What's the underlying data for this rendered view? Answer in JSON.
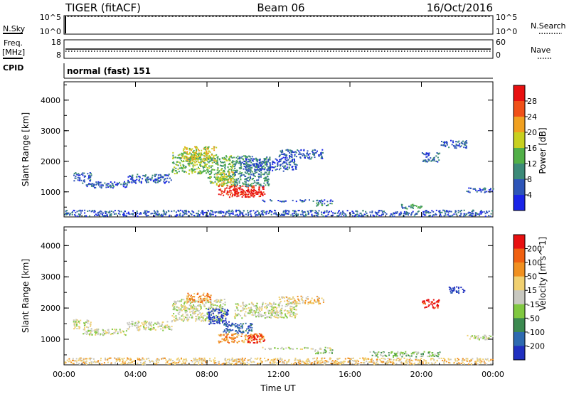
{
  "header": {
    "radar": "TIGER (fitACF)",
    "beam": "Beam 06",
    "date": "16/Oct/2016"
  },
  "strip_nsky": {
    "left_label": "N.Sky",
    "left_ticks": [
      "10^5",
      "10^0"
    ],
    "right_label": "N.Search",
    "right_ticks": [
      "10^5",
      "10^0"
    ]
  },
  "strip_freq": {
    "left_label_1": "Freq.",
    "left_label_2": "[MHz]",
    "left_ticks": [
      "18",
      "8"
    ],
    "right_label": "Nave",
    "right_ticks": [
      "60",
      "0"
    ]
  },
  "cpid": {
    "label": "CPID",
    "value": "normal (fast) 151"
  },
  "chart_data": [
    {
      "type": "heatmap",
      "name": "power",
      "ylabel": "Slant Range [km]",
      "xlabel": "",
      "xlim": [
        0,
        24
      ],
      "ylim": [
        180,
        4600
      ],
      "x_ticks": [
        "00:00",
        "04:00",
        "08:00",
        "12:00",
        "16:00",
        "20:00",
        "00:00"
      ],
      "y_ticks": [
        "1000",
        "2000",
        "3000",
        "4000"
      ],
      "colorbar": {
        "label": "Power [dB]",
        "ticks": [
          "4",
          "8",
          "12",
          "16",
          "20",
          "24",
          "28"
        ],
        "colors": [
          "#1a24e8",
          "#2e55b8",
          "#3c8a78",
          "#52b048",
          "#c8d020",
          "#f0a020",
          "#f05018",
          "#e81010"
        ]
      },
      "regions": [
        {
          "t0": 0.0,
          "t1": 24.0,
          "r0": 220,
          "r1": 420,
          "level": 1
        },
        {
          "t0": 0.5,
          "t1": 1.5,
          "r0": 1350,
          "r1": 1650,
          "level": 1
        },
        {
          "t0": 1.0,
          "t1": 3.5,
          "r0": 1150,
          "r1": 1350,
          "level": 1
        },
        {
          "t0": 3.5,
          "t1": 6.0,
          "r0": 1300,
          "r1": 1600,
          "level": 1
        },
        {
          "t0": 6.0,
          "t1": 8.0,
          "r0": 1600,
          "r1": 2300,
          "level": 3
        },
        {
          "t0": 6.5,
          "t1": 8.5,
          "r0": 2000,
          "r1": 2500,
          "level": 4
        },
        {
          "t0": 8.0,
          "t1": 9.5,
          "r0": 1300,
          "r1": 2200,
          "level": 3
        },
        {
          "t0": 8.5,
          "t1": 9.5,
          "r0": 1200,
          "r1": 1700,
          "level": 4
        },
        {
          "t0": 8.6,
          "t1": 11.2,
          "r0": 900,
          "r1": 1250,
          "level": 7
        },
        {
          "t0": 9.2,
          "t1": 11.0,
          "r0": 850,
          "r1": 1050,
          "level": 7
        },
        {
          "t0": 9.5,
          "t1": 11.5,
          "r0": 1200,
          "r1": 2200,
          "level": 2
        },
        {
          "t0": 10.0,
          "t1": 13.0,
          "r0": 1700,
          "r1": 2100,
          "level": 1
        },
        {
          "t0": 12.0,
          "t1": 14.5,
          "r0": 2100,
          "r1": 2400,
          "level": 1
        },
        {
          "t0": 11.0,
          "t1": 15.0,
          "r0": 700,
          "r1": 760,
          "level": 1
        },
        {
          "t0": 14.0,
          "t1": 15.0,
          "r0": 560,
          "r1": 680,
          "level": 2
        },
        {
          "t0": 18.8,
          "t1": 20.0,
          "r0": 460,
          "r1": 620,
          "level": 2
        },
        {
          "t0": 20.0,
          "t1": 21.0,
          "r0": 2000,
          "r1": 2300,
          "level": 1
        },
        {
          "t0": 21.0,
          "t1": 22.5,
          "r0": 2450,
          "r1": 2700,
          "level": 1
        },
        {
          "t0": 22.5,
          "t1": 24.0,
          "r0": 1000,
          "r1": 1150,
          "level": 1
        }
      ]
    },
    {
      "type": "heatmap",
      "name": "velocity",
      "ylabel": "Slant Range [km]",
      "xlabel": "Time UT",
      "xlim": [
        0,
        24
      ],
      "ylim": [
        180,
        4600
      ],
      "x_ticks": [
        "00:00",
        "04:00",
        "08:00",
        "12:00",
        "16:00",
        "20:00",
        "00:00"
      ],
      "y_ticks": [
        "1000",
        "2000",
        "3000",
        "4000"
      ],
      "colorbar": {
        "label": "Velocity [m s^-1]",
        "ticks": [
          "200",
          "100",
          "50",
          "15",
          "-15",
          "-50",
          "-100",
          "-200"
        ],
        "colors": [
          "#2030c0",
          "#2e6ab0",
          "#3c8a50",
          "#80c840",
          "#c8c8c0",
          "#f0d070",
          "#f09020",
          "#f06010",
          "#e81010"
        ]
      },
      "regions": [
        {
          "t0": 0.0,
          "t1": 24.0,
          "r0": 220,
          "r1": 420,
          "level": 5
        },
        {
          "t0": 0.5,
          "t1": 1.5,
          "r0": 1350,
          "r1": 1650,
          "level": 4
        },
        {
          "t0": 1.0,
          "t1": 3.5,
          "r0": 1150,
          "r1": 1350,
          "level": 4
        },
        {
          "t0": 3.5,
          "t1": 6.0,
          "r0": 1300,
          "r1": 1600,
          "level": 4
        },
        {
          "t0": 6.0,
          "t1": 9.0,
          "r0": 1600,
          "r1": 2300,
          "level": 4
        },
        {
          "t0": 6.8,
          "t1": 8.2,
          "r0": 2200,
          "r1": 2500,
          "level": 6
        },
        {
          "t0": 8.0,
          "t1": 9.2,
          "r0": 1500,
          "r1": 2000,
          "level": 0
        },
        {
          "t0": 8.8,
          "t1": 10.5,
          "r0": 1200,
          "r1": 1550,
          "level": 1
        },
        {
          "t0": 8.6,
          "t1": 11.2,
          "r0": 900,
          "r1": 1200,
          "level": 6
        },
        {
          "t0": 10.2,
          "t1": 11.2,
          "r0": 900,
          "r1": 1150,
          "level": 8
        },
        {
          "t0": 9.5,
          "t1": 13.0,
          "r0": 1700,
          "r1": 2200,
          "level": 4
        },
        {
          "t0": 12.0,
          "t1": 14.5,
          "r0": 2150,
          "r1": 2400,
          "level": 5
        },
        {
          "t0": 11.0,
          "t1": 15.0,
          "r0": 700,
          "r1": 760,
          "level": 4
        },
        {
          "t0": 14.0,
          "t1": 15.0,
          "r0": 560,
          "r1": 680,
          "level": 3
        },
        {
          "t0": 17.0,
          "t1": 21.0,
          "r0": 450,
          "r1": 620,
          "level": 3
        },
        {
          "t0": 20.0,
          "t1": 21.0,
          "r0": 2000,
          "r1": 2300,
          "level": 8
        },
        {
          "t0": 21.5,
          "t1": 22.5,
          "r0": 2500,
          "r1": 2700,
          "level": 0
        },
        {
          "t0": 22.5,
          "t1": 24.0,
          "r0": 1000,
          "r1": 1150,
          "level": 4
        }
      ]
    }
  ]
}
